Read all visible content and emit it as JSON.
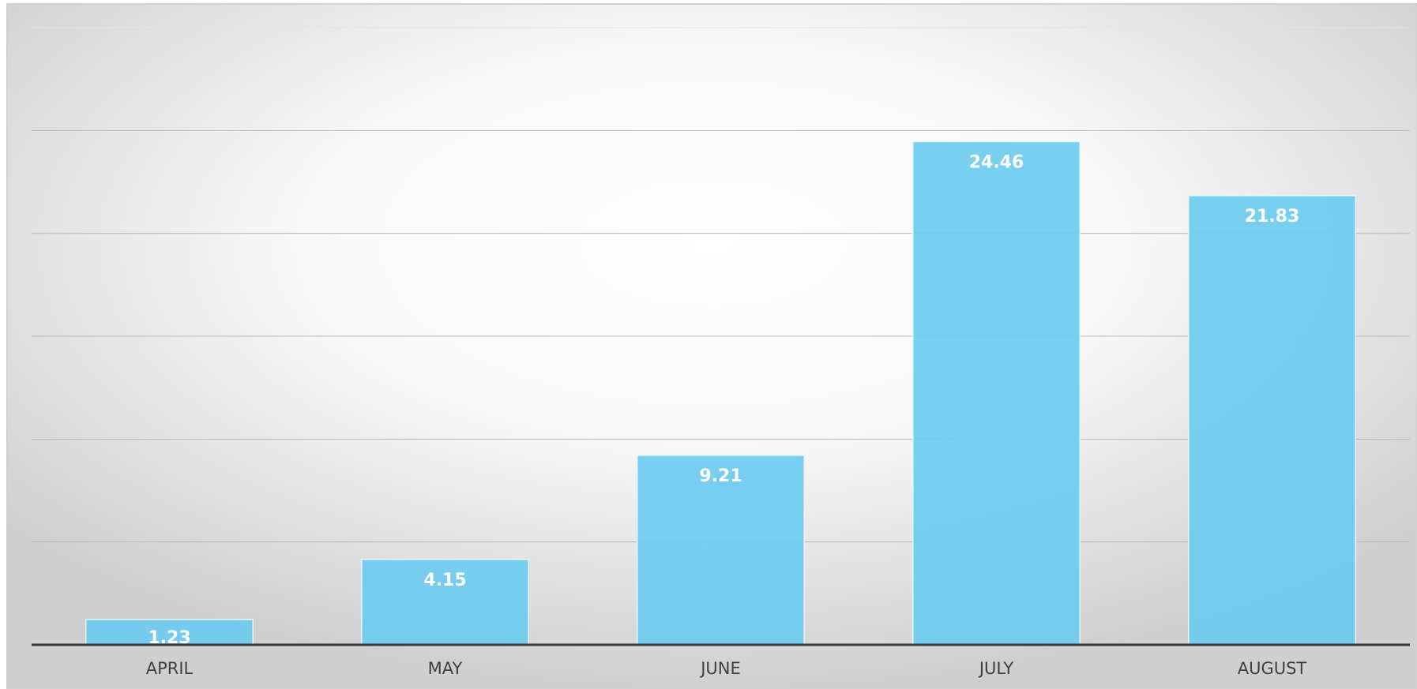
{
  "chart_data": {
    "type": "bar",
    "categories": [
      "APRIL",
      "MAY",
      "JUNE",
      "JULY",
      "AUGUST"
    ],
    "values": [
      1.23,
      4.15,
      9.21,
      24.46,
      21.83
    ],
    "color": "#6ecbef",
    "ylim": [
      0,
      30
    ],
    "yticks": [
      0,
      5,
      10,
      15,
      20,
      25,
      30
    ],
    "grid": true
  }
}
